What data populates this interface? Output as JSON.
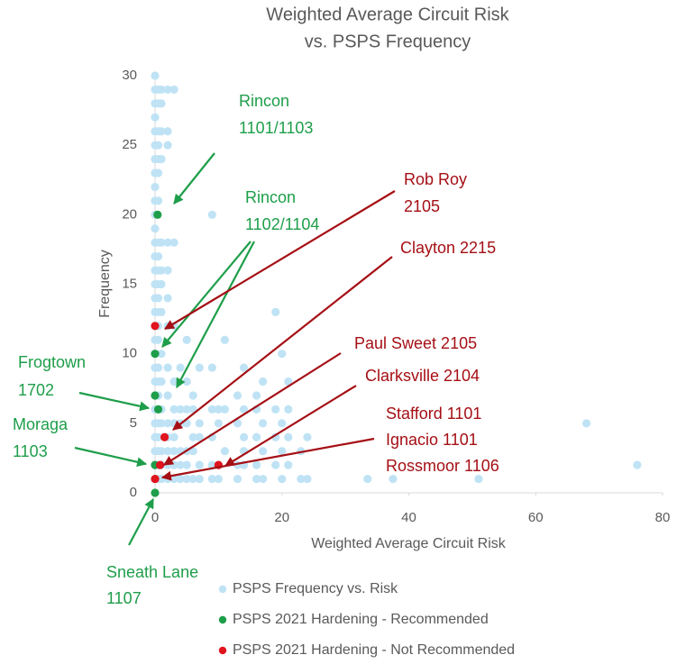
{
  "chart_data": {
    "type": "scatter",
    "title": [
      "Weighted Average Circuit Risk",
      "vs. PSPS Frequency"
    ],
    "x_label": "Weighted Average Circuit Risk",
    "y_label": "Frequency",
    "xlim": [
      0,
      80
    ],
    "xticks": [
      0,
      20,
      40,
      60,
      80
    ],
    "ylim": [
      0,
      30
    ],
    "yticks": [
      0,
      5,
      10,
      15,
      20,
      25,
      30
    ],
    "grid": false,
    "legend": "bottom",
    "series": [
      {
        "name": "PSPS Frequency vs. Risk",
        "color": "#bfe3f5",
        "x": [
          0,
          0,
          0,
          0,
          0,
          0,
          0,
          0,
          0,
          0,
          0,
          0,
          0,
          0,
          0,
          0,
          0,
          0,
          0,
          0,
          0,
          0,
          0,
          0,
          0,
          0,
          0,
          0,
          0,
          0,
          0.5,
          0.5,
          0.5,
          0.5,
          0.5,
          0.5,
          0.5,
          0.5,
          0.5,
          0.5,
          0.5,
          0.5,
          0.5,
          0.5,
          0.5,
          0.5,
          0.5,
          0.5,
          0.5,
          0.5,
          0.5,
          0.5,
          0.5,
          1,
          1,
          1,
          1,
          1,
          1,
          1,
          1,
          1,
          1,
          1,
          1,
          1,
          1,
          1,
          2,
          2,
          2,
          2,
          2,
          2,
          2,
          2,
          2,
          2,
          2,
          2,
          2,
          2,
          3,
          3,
          3,
          3,
          3,
          3,
          3,
          3,
          3,
          3,
          4,
          4,
          4,
          4,
          4,
          4,
          5,
          5,
          5,
          5,
          5,
          5,
          5,
          6,
          6,
          6,
          6,
          6,
          7,
          7,
          7,
          7,
          7,
          9,
          9,
          9,
          9,
          9,
          9,
          10,
          10,
          10,
          11,
          11,
          11,
          13,
          13,
          13,
          13,
          14,
          14,
          14,
          14,
          14,
          16,
          16,
          16,
          16,
          16,
          17,
          17,
          17,
          17,
          19,
          19,
          19,
          19,
          20,
          20,
          20,
          20,
          21,
          21,
          21,
          21,
          23,
          23,
          24,
          24,
          33.5,
          37.5,
          51,
          68,
          76
        ],
        "values": [
          30,
          29,
          28,
          27,
          26,
          25,
          24,
          23,
          22,
          21,
          20,
          19,
          18,
          17,
          16,
          15,
          14,
          13,
          12,
          11,
          10,
          9,
          8,
          7,
          6,
          5,
          4,
          3,
          2,
          1,
          29,
          28,
          26,
          25,
          24,
          23,
          21,
          18,
          17,
          16,
          15,
          14,
          13,
          12,
          11,
          9,
          8,
          7,
          5,
          4,
          3,
          2,
          1,
          29,
          28,
          26,
          24,
          18,
          16,
          15,
          13,
          10,
          8,
          6,
          5,
          3,
          2,
          1,
          29,
          26,
          25,
          18,
          16,
          14,
          12,
          9,
          7,
          5,
          4,
          3,
          2,
          1,
          29,
          18,
          12,
          8,
          6,
          5,
          4,
          3,
          2,
          1,
          9,
          6,
          5,
          3,
          2,
          1,
          11,
          8,
          6,
          5,
          3,
          2,
          1,
          7,
          6,
          4,
          3,
          1,
          9,
          5,
          4,
          2,
          1,
          20,
          9,
          6,
          4,
          2,
          1,
          6,
          5,
          1,
          11,
          6,
          3,
          7,
          5,
          2,
          1,
          9,
          6,
          4,
          3,
          2,
          7,
          6,
          4,
          2,
          1,
          8,
          5,
          3,
          1,
          13,
          6,
          4,
          2,
          10,
          5,
          3,
          1,
          8,
          6,
          4,
          2,
          3,
          1,
          4,
          1,
          1,
          1,
          1,
          5,
          2
        ]
      },
      {
        "name": "PSPS 2021 Hardening - Recommended",
        "color": "#1e9e4a",
        "x": [
          0.4,
          0,
          0,
          0.5,
          0,
          0
        ],
        "values": [
          20,
          10,
          7,
          6,
          2,
          0
        ]
      },
      {
        "name": "PSPS 2021 Hardening - Not Recommended",
        "color": "#e0141e",
        "x": [
          0,
          1.5,
          0.8,
          10,
          0
        ],
        "values": [
          12,
          4,
          2,
          2,
          1
        ]
      }
    ],
    "annotations": [
      {
        "lines": [
          "Rincon",
          "1101/1103"
        ],
        "color": "#1e9e4a"
      },
      {
        "lines": [
          "Rincon",
          "1102/1104"
        ],
        "color": "#1e9e4a"
      },
      {
        "lines": [
          "Frogtown",
          "1702"
        ],
        "color": "#1e9e4a"
      },
      {
        "lines": [
          "Moraga",
          "1103"
        ],
        "color": "#1e9e4a"
      },
      {
        "lines": [
          "Sneath Lane",
          "1107"
        ],
        "color": "#1e9e4a"
      },
      {
        "lines": [
          "Rob Roy",
          "2105"
        ],
        "color": "#a50f15"
      },
      {
        "lines": [
          "Clayton 2215"
        ],
        "color": "#a50f15"
      },
      {
        "lines": [
          "Paul Sweet 2105"
        ],
        "color": "#a50f15"
      },
      {
        "lines": [
          "Clarksville 2104"
        ],
        "color": "#a50f15"
      },
      {
        "lines": [
          "Stafford 1101",
          "Ignacio 1101",
          "Rossmoor 1106"
        ],
        "color": "#a50f15"
      }
    ]
  }
}
